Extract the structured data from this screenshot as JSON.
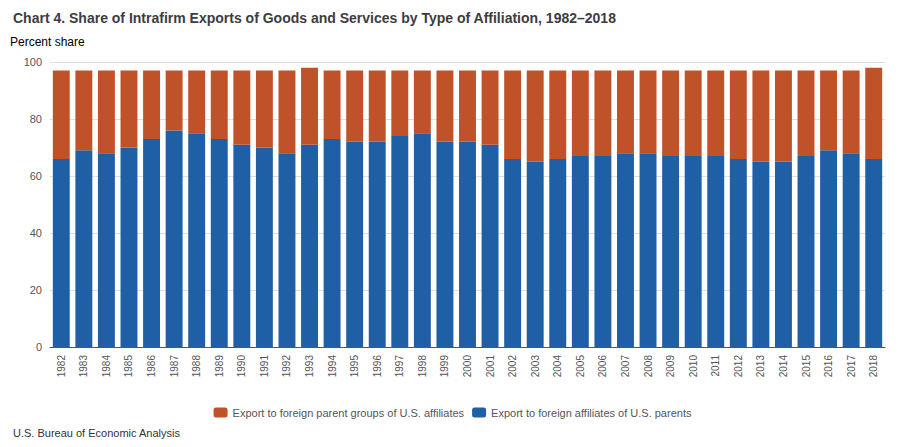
{
  "chart_data": {
    "type": "bar",
    "title": "Chart 4. Share of Intrafirm Exports of Goods and Services by Type of Affiliation, 1982–2018",
    "ylabel": "Percent share",
    "annotations": [
      "U.S. Bureau of Economic Analysis"
    ],
    "categories": [
      "1982",
      "1983",
      "1984",
      "1985",
      "1986",
      "1987",
      "1988",
      "1989",
      "1990",
      "1991",
      "1992",
      "1993",
      "1994",
      "1995",
      "1996",
      "1997",
      "1998",
      "1999",
      "2000",
      "2001",
      "2002",
      "2003",
      "2004",
      "2005",
      "2006",
      "2007",
      "2008",
      "2009",
      "2010",
      "2011",
      "2012",
      "2013",
      "2014",
      "2015",
      "2016",
      "2017",
      "2018"
    ],
    "series": [
      {
        "name": "Export to foreign affiliates of U.S. parents",
        "color": "#1F5FA6",
        "values": [
          66,
          69,
          68,
          70,
          73,
          76,
          75,
          73,
          71,
          70,
          68,
          71,
          73,
          72,
          72,
          74,
          75,
          72,
          72,
          71,
          66,
          65,
          66,
          67,
          67,
          68,
          68,
          67,
          67,
          67,
          66,
          65,
          65,
          67,
          69,
          68,
          66
        ]
      },
      {
        "name": "Export to foreign parent groups of U.S. affiliates",
        "color": "#C0522A",
        "values": [
          31,
          28,
          29,
          27,
          24,
          21,
          22,
          24,
          26,
          27,
          29,
          27,
          24,
          25,
          25,
          23,
          22,
          25,
          25,
          26,
          31,
          32,
          31,
          30,
          30,
          29,
          29,
          30,
          30,
          30,
          31,
          32,
          32,
          30,
          28,
          29,
          32
        ]
      }
    ],
    "stacked": true,
    "ylim": [
      0,
      100
    ],
    "yticks": [
      0,
      20,
      40,
      60,
      80,
      100
    ],
    "grid": true,
    "legend": "bottom"
  }
}
